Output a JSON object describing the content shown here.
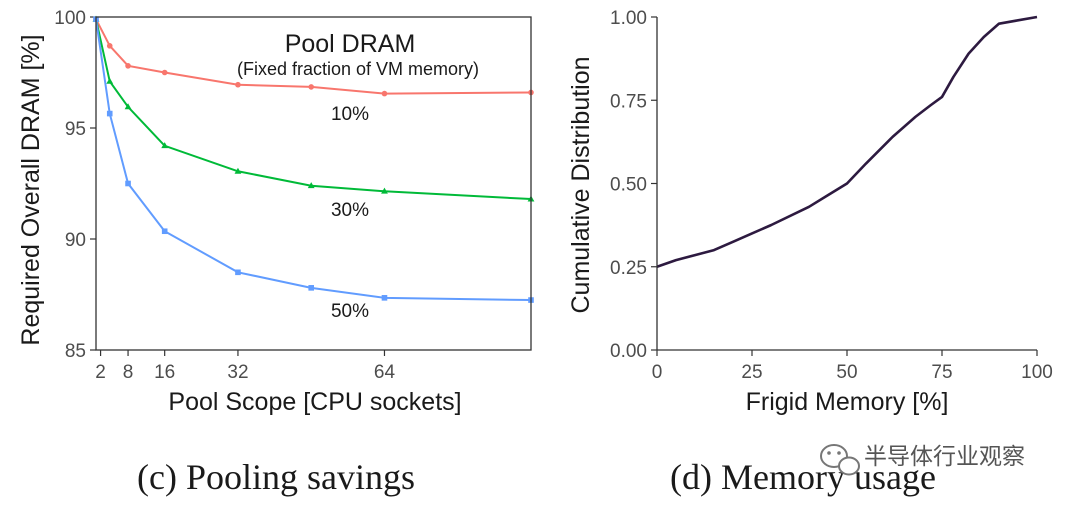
{
  "chart_data": [
    {
      "type": "line",
      "xlabel": "Pool Scope [CPU sockets]",
      "ylabel": "Required Overall DRAM [%]",
      "xlim": [
        1,
        96
      ],
      "ylim": [
        85,
        100
      ],
      "xticks": [
        2,
        8,
        16,
        32,
        64
      ],
      "yticks": [
        85,
        90,
        95,
        100
      ],
      "grid": false,
      "legend_title": "Pool DRAM",
      "legend_subtitle": "(Fixed fraction of VM memory)",
      "series": [
        {
          "name": "10%",
          "color": "#f8766d",
          "marker": "circle",
          "x": [
            1,
            4,
            8,
            16,
            32,
            48,
            64,
            96
          ],
          "y": [
            99.9,
            98.7,
            97.8,
            97.5,
            96.95,
            96.85,
            96.55,
            96.6
          ]
        },
        {
          "name": "30%",
          "color": "#00ba38",
          "marker": "triangle",
          "x": [
            1,
            4,
            8,
            16,
            32,
            48,
            64,
            96
          ],
          "y": [
            99.9,
            97.1,
            95.95,
            94.2,
            93.05,
            92.4,
            92.15,
            91.8
          ]
        },
        {
          "name": "50%",
          "color": "#619cff",
          "marker": "square",
          "x": [
            1,
            4,
            8,
            16,
            32,
            48,
            64,
            96
          ],
          "y": [
            99.9,
            95.65,
            92.5,
            90.35,
            88.5,
            87.8,
            87.35,
            87.25
          ]
        }
      ],
      "caption": "(c) Pooling savings"
    },
    {
      "type": "line",
      "xlabel": "Frigid Memory [%]",
      "ylabel": "Cumulative Distribution",
      "xlim": [
        0,
        100
      ],
      "ylim": [
        0,
        1
      ],
      "xticks": [
        "0",
        "25",
        "50",
        "75",
        "100"
      ],
      "yticks": [
        "0.00",
        "0.25",
        "0.50",
        "0.75",
        "1.00"
      ],
      "grid": false,
      "series": [
        {
          "color": "#2d1a40",
          "x": [
            0,
            5,
            10,
            15,
            20,
            25,
            30,
            40,
            45,
            50,
            55,
            62,
            68,
            72,
            75,
            78,
            82,
            86,
            90,
            95,
            100
          ],
          "y": [
            0.25,
            0.27,
            0.285,
            0.3,
            0.325,
            0.35,
            0.375,
            0.43,
            0.465,
            0.5,
            0.56,
            0.64,
            0.7,
            0.735,
            0.76,
            0.82,
            0.89,
            0.94,
            0.98,
            0.99,
            1.0
          ]
        }
      ],
      "caption": "(d) Memory usage"
    }
  ],
  "watermark": {
    "text": "半导体行业观察",
    "icon": "wechat-logo-icon"
  }
}
